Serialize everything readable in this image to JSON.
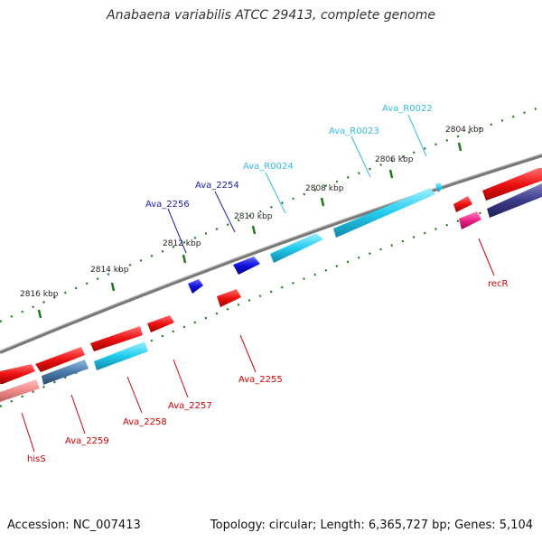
{
  "title": "Anabaena variabilis ATCC 29413, complete genome",
  "footer": {
    "accession": "Accession: NC_007413",
    "stats": "Topology: circular; Length: 6,365,727 bp; Genes: 5,104"
  },
  "colors": {
    "backbone": "#7a7a7a",
    "tick": "#1e7a1e",
    "red_gene": "#ee1111",
    "cyan_gene": "#22ccee",
    "blue_gene": "#1111dd",
    "navy_gene": "#3a3a8a",
    "steel_gene": "#4a7aaa",
    "pink_gene": "#ee2288",
    "light_red_gene": "#ee8888",
    "label_red": "#cc0000",
    "label_cyan": "#33bbdd",
    "label_blue": "#1a1aaa"
  },
  "scale": {
    "ticks": [
      {
        "label": "2816 kbp"
      },
      {
        "label": "2814 kbp"
      },
      {
        "label": "2812 kbp"
      },
      {
        "label": "2810 kbp"
      },
      {
        "label": "2808 kbp"
      },
      {
        "label": "2806 kbp"
      },
      {
        "label": "2804 kbp"
      }
    ]
  },
  "labels": {
    "outer": [
      {
        "text": "Ava_2256",
        "color": "blue"
      },
      {
        "text": "Ava_2254",
        "color": "blue"
      },
      {
        "text": "Ava_R0024",
        "color": "cyan"
      },
      {
        "text": "Ava_R0023",
        "color": "cyan"
      },
      {
        "text": "Ava_R0022",
        "color": "cyan"
      }
    ],
    "inner": [
      {
        "text": "hisS",
        "color": "red"
      },
      {
        "text": "Ava_2259",
        "color": "red"
      },
      {
        "text": "Ava_2258",
        "color": "red"
      },
      {
        "text": "Ava_2257",
        "color": "red"
      },
      {
        "text": "Ava_2255",
        "color": "red"
      },
      {
        "text": "recR",
        "color": "red"
      }
    ]
  }
}
